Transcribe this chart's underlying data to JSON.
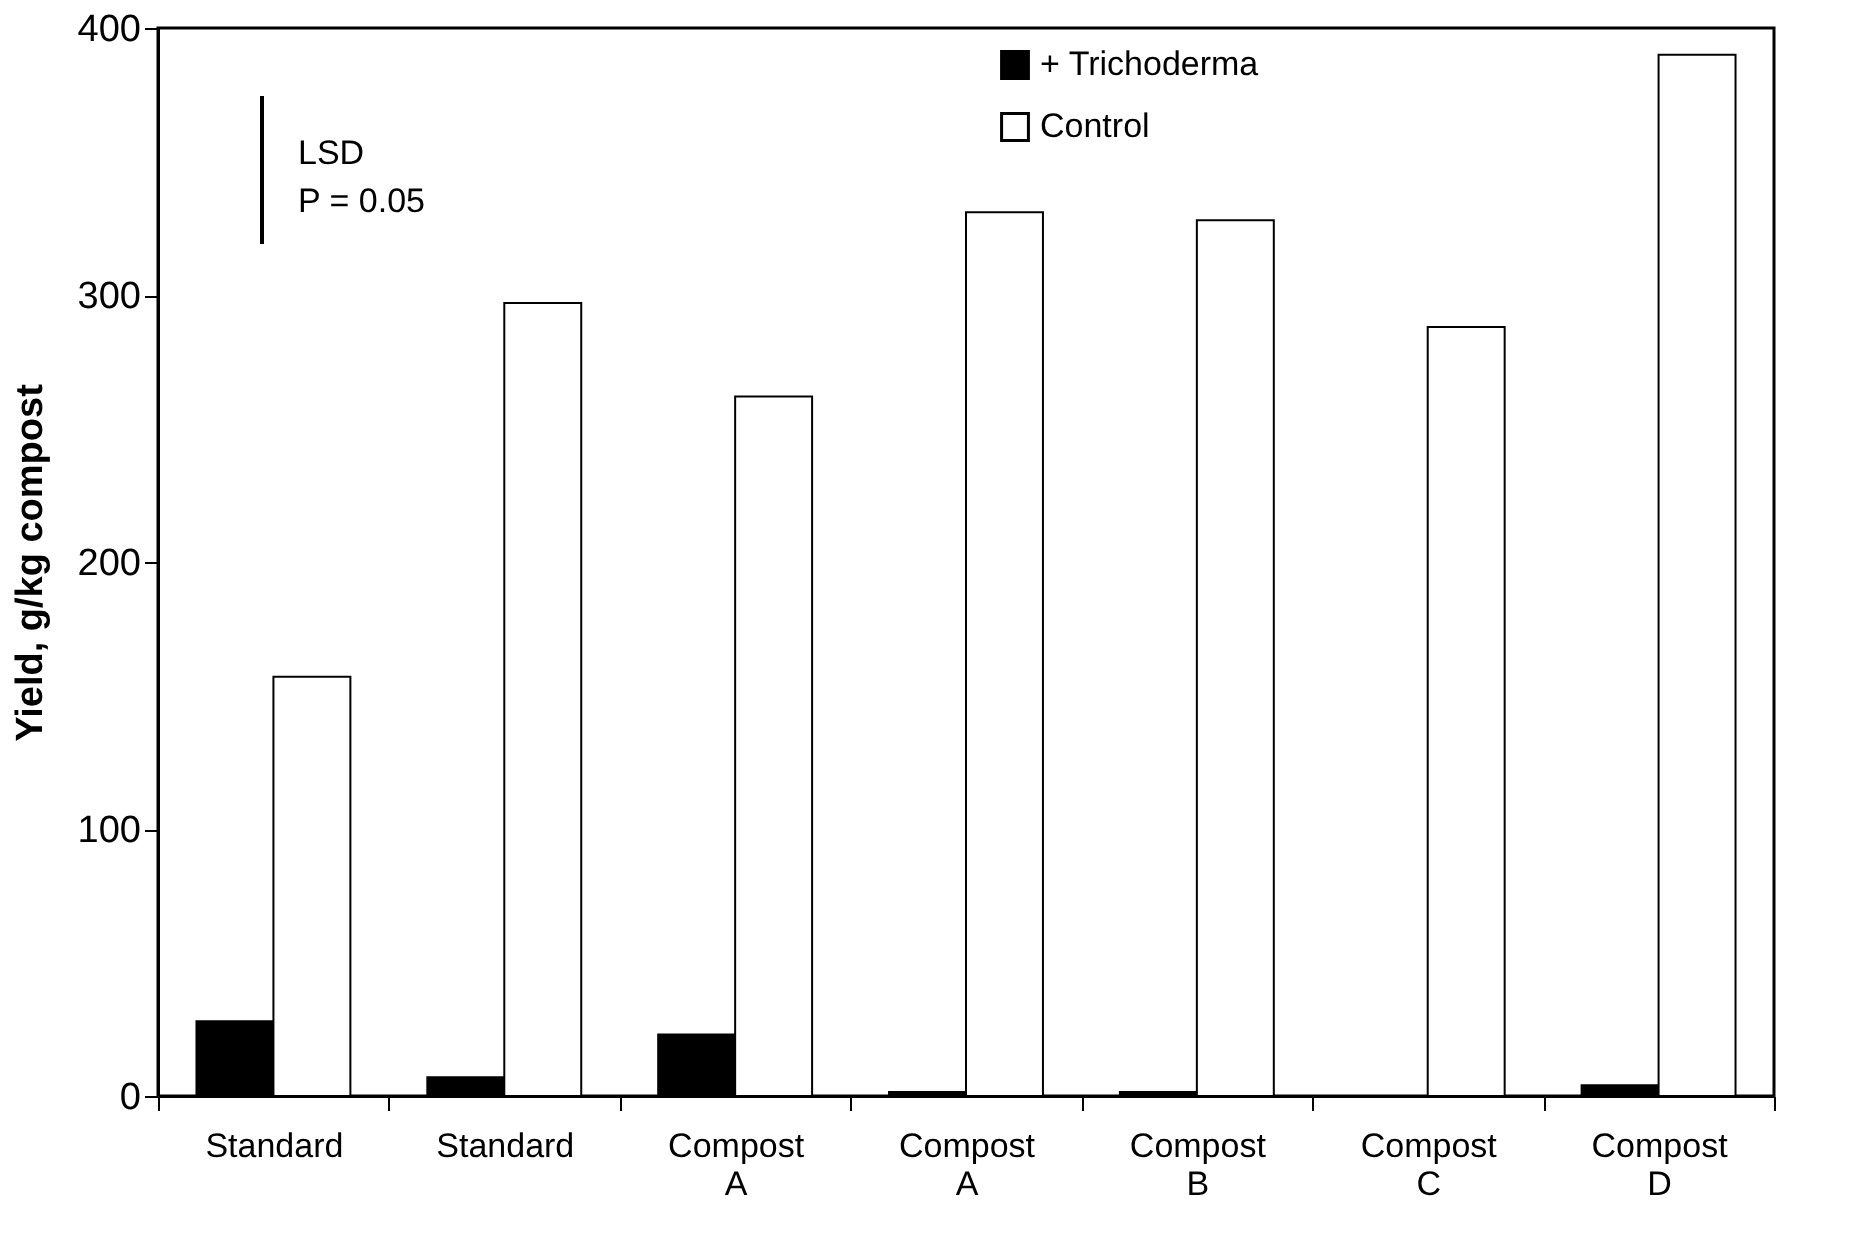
{
  "chart_data": {
    "type": "bar",
    "ylabel": "Yield, g/kg compost",
    "categories": [
      "Standard",
      "Standard",
      "Compost A",
      "Compost A",
      "Compost B",
      "Compost C",
      "Compost D"
    ],
    "series": [
      {
        "name": "+ Trichoderma",
        "color": "#000000",
        "values": [
          28,
          7,
          23,
          1.5,
          1.5,
          0,
          4
        ]
      },
      {
        "name": "Control",
        "color": "#ffffff",
        "values": [
          157,
          297,
          262,
          331,
          328,
          288,
          390
        ]
      }
    ],
    "ylim": [
      0,
      400
    ],
    "yticks": [
      0,
      100,
      200,
      300,
      400
    ],
    "grid": false,
    "legend": "top right",
    "annotations": [
      "LSD\nP = 0.05"
    ]
  }
}
